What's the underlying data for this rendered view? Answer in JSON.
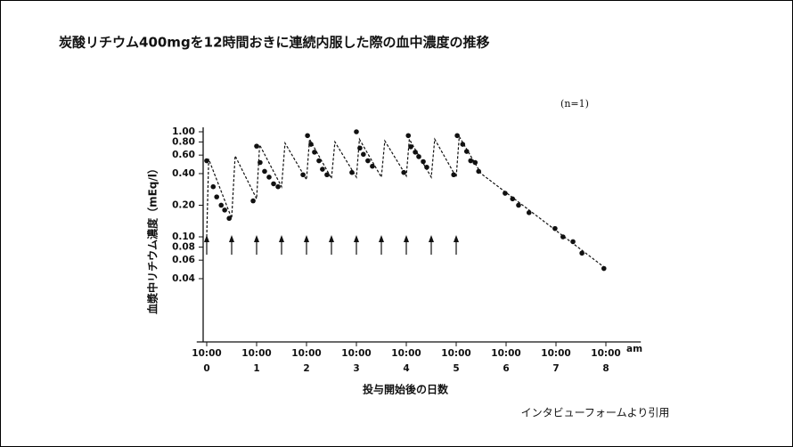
{
  "chart_data": {
    "type": "scatter",
    "title": "炭酸リチウム400mgを12時間おきに連続内服した際の血中濃度の推移",
    "annotation": "(n=1)",
    "y_label": "血漿中リチウム濃度（mEq/l）",
    "x_label": "投与開始後の日数",
    "x_unit_label": "am",
    "source": "インタビューフォームより引用",
    "log_y": true,
    "color": "#111111",
    "xlim": [
      -0.2,
      8.7
    ],
    "ylim": [
      0.01,
      1.0
    ],
    "xticks": [
      0,
      1,
      2,
      3,
      4,
      5,
      6,
      7,
      8
    ],
    "time_labels": [
      "10:00",
      "10:00",
      "10:00",
      "10:00",
      "10:00",
      "10:00",
      "10:00",
      "10:00",
      "10:00"
    ],
    "yticks": [
      {
        "value": 1,
        "label": "1.00"
      },
      {
        "value": 0.8,
        "label": "0.80"
      },
      {
        "value": 0.6,
        "label": "0.60"
      },
      {
        "value": 0.4,
        "label": "0.40"
      },
      {
        "value": 0.2,
        "label": "0.20"
      },
      {
        "value": 0.1,
        "label": "0.10"
      },
      0.08,
      0.06,
      0.04
    ],
    "dose_times": [
      0,
      0.5,
      1,
      1.5,
      2,
      2.5,
      3,
      3.5,
      4,
      4.5,
      5
    ],
    "points": {
      "x": [
        0,
        0.13,
        0.2,
        0.29,
        0.36,
        0.45,
        0.93,
        1.0,
        1.07,
        1.16,
        1.25,
        1.34,
        1.43,
        1.93,
        2.02,
        2.09,
        2.16,
        2.25,
        2.32,
        2.41,
        2.91,
        3.0,
        3.07,
        3.14,
        3.23,
        3.32,
        3.95,
        4.04,
        4.09,
        4.18,
        4.25,
        4.34,
        4.41,
        4.95,
        5.02,
        5.13,
        5.21,
        5.29,
        5.38,
        5.45,
        5.98,
        6.13,
        6.25,
        6.46,
        6.98,
        7.14,
        7.34,
        7.52,
        7.96
      ],
      "values": [
        0.53,
        0.3,
        0.24,
        0.2,
        0.18,
        0.15,
        0.22,
        0.73,
        0.51,
        0.42,
        0.37,
        0.32,
        0.3,
        0.39,
        0.92,
        0.76,
        0.64,
        0.53,
        0.44,
        0.39,
        0.41,
        1.0,
        0.7,
        0.61,
        0.53,
        0.47,
        0.41,
        0.92,
        0.72,
        0.64,
        0.58,
        0.52,
        0.46,
        0.39,
        0.92,
        0.76,
        0.65,
        0.53,
        0.51,
        0.42,
        0.26,
        0.23,
        0.2,
        0.17,
        0.12,
        0.1,
        0.09,
        0.07,
        0.05
      ]
    },
    "curve": {
      "x": [
        0,
        0.04,
        0.5,
        0.57,
        1.0,
        1.06,
        1.5,
        1.57,
        2.0,
        2.06,
        2.5,
        2.57,
        3.0,
        3.06,
        3.5,
        3.57,
        4.0,
        4.06,
        4.5,
        4.57,
        5.0,
        5.06,
        5.5,
        8.0
      ],
      "values": [
        0.1,
        0.55,
        0.15,
        0.59,
        0.23,
        0.75,
        0.3,
        0.78,
        0.35,
        0.85,
        0.36,
        0.8,
        0.37,
        0.85,
        0.37,
        0.82,
        0.38,
        0.85,
        0.37,
        0.85,
        0.37,
        0.9,
        0.4,
        0.05
      ]
    }
  }
}
